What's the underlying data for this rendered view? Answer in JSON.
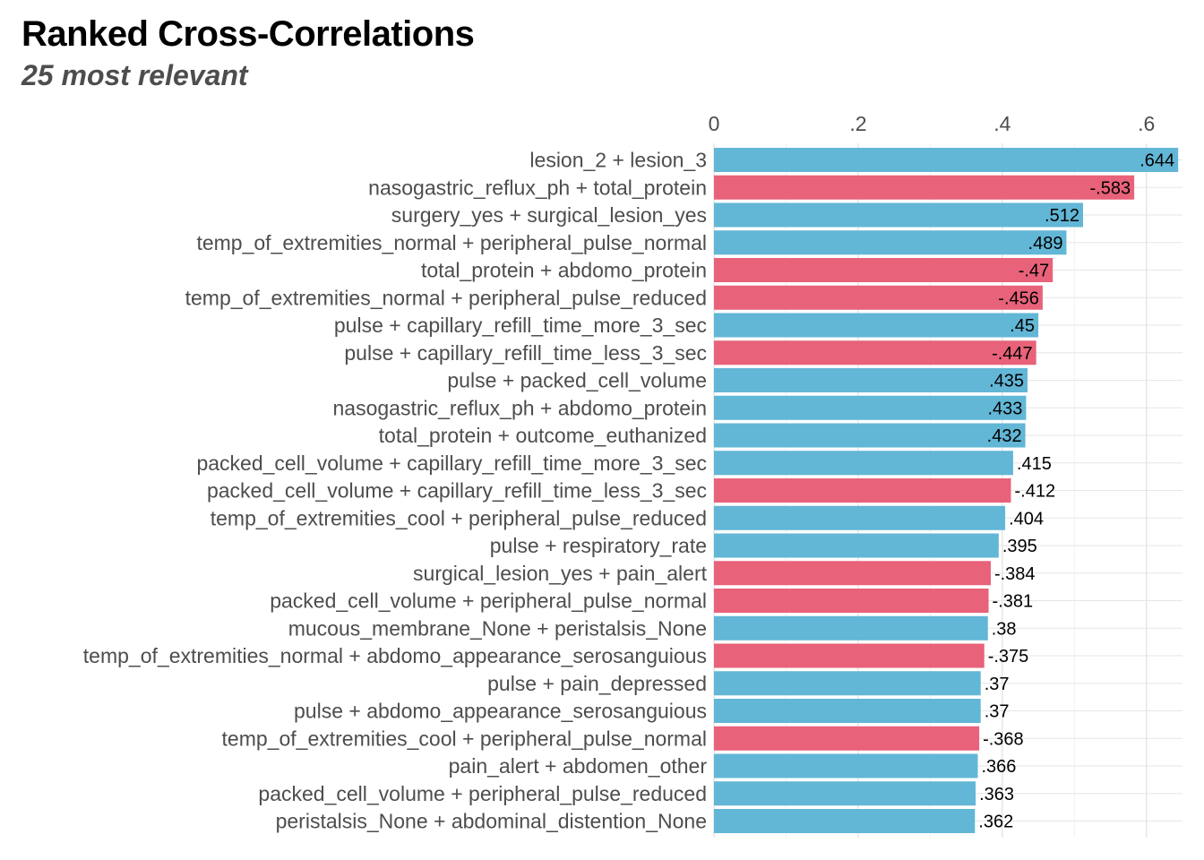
{
  "chart_data": {
    "type": "bar",
    "orientation": "horizontal",
    "title": "Ranked Cross-Correlations",
    "subtitle": "25 most relevant",
    "xlabel": "",
    "ylabel": "",
    "xlim": [
      0,
      0.65
    ],
    "x_ticks": [
      0,
      0.2,
      0.4,
      0.6
    ],
    "x_tick_labels": [
      "0",
      ".2",
      ".4",
      ".6"
    ],
    "x_axis_position": "top",
    "grid": true,
    "colors": {
      "positive": "#62b6d6",
      "negative": "#e8627a"
    },
    "categories": [
      "lesion_2 + lesion_3",
      "nasogastric_reflux_ph + total_protein",
      "surgery_yes + surgical_lesion_yes",
      "temp_of_extremities_normal + peripheral_pulse_normal",
      "total_protein + abdomo_protein",
      "temp_of_extremities_normal + peripheral_pulse_reduced",
      "pulse + capillary_refill_time_more_3_sec",
      "pulse + capillary_refill_time_less_3_sec",
      "pulse + packed_cell_volume",
      "nasogastric_reflux_ph + abdomo_protein",
      "total_protein + outcome_euthanized",
      "packed_cell_volume + capillary_refill_time_more_3_sec",
      "packed_cell_volume + capillary_refill_time_less_3_sec",
      "temp_of_extremities_cool + peripheral_pulse_reduced",
      "pulse + respiratory_rate",
      "surgical_lesion_yes + pain_alert",
      "packed_cell_volume + peripheral_pulse_normal",
      "mucous_membrane_None + peristalsis_None",
      "temp_of_extremities_normal + abdomo_appearance_serosanguious",
      "pulse + pain_depressed",
      "pulse + abdomo_appearance_serosanguious",
      "temp_of_extremities_cool + peripheral_pulse_normal",
      "pain_alert + abdomen_other",
      "packed_cell_volume + peripheral_pulse_reduced",
      "peristalsis_None + abdominal_distention_None"
    ],
    "values": [
      0.644,
      -0.583,
      0.512,
      0.489,
      -0.47,
      -0.456,
      0.45,
      -0.447,
      0.435,
      0.433,
      0.432,
      0.415,
      -0.412,
      0.404,
      0.395,
      -0.384,
      -0.381,
      0.38,
      -0.375,
      0.37,
      0.37,
      -0.368,
      0.366,
      0.363,
      0.362
    ],
    "value_labels": [
      ".644",
      "-.583",
      ".512",
      ".489",
      "-.47",
      "-.456",
      ".45",
      "-.447",
      ".435",
      ".433",
      ".432",
      ".415",
      "-.412",
      ".404",
      ".395",
      "-.384",
      "-.381",
      ".38",
      "-.375",
      ".37",
      ".37",
      "-.368",
      ".366",
      ".363",
      ".362"
    ]
  }
}
